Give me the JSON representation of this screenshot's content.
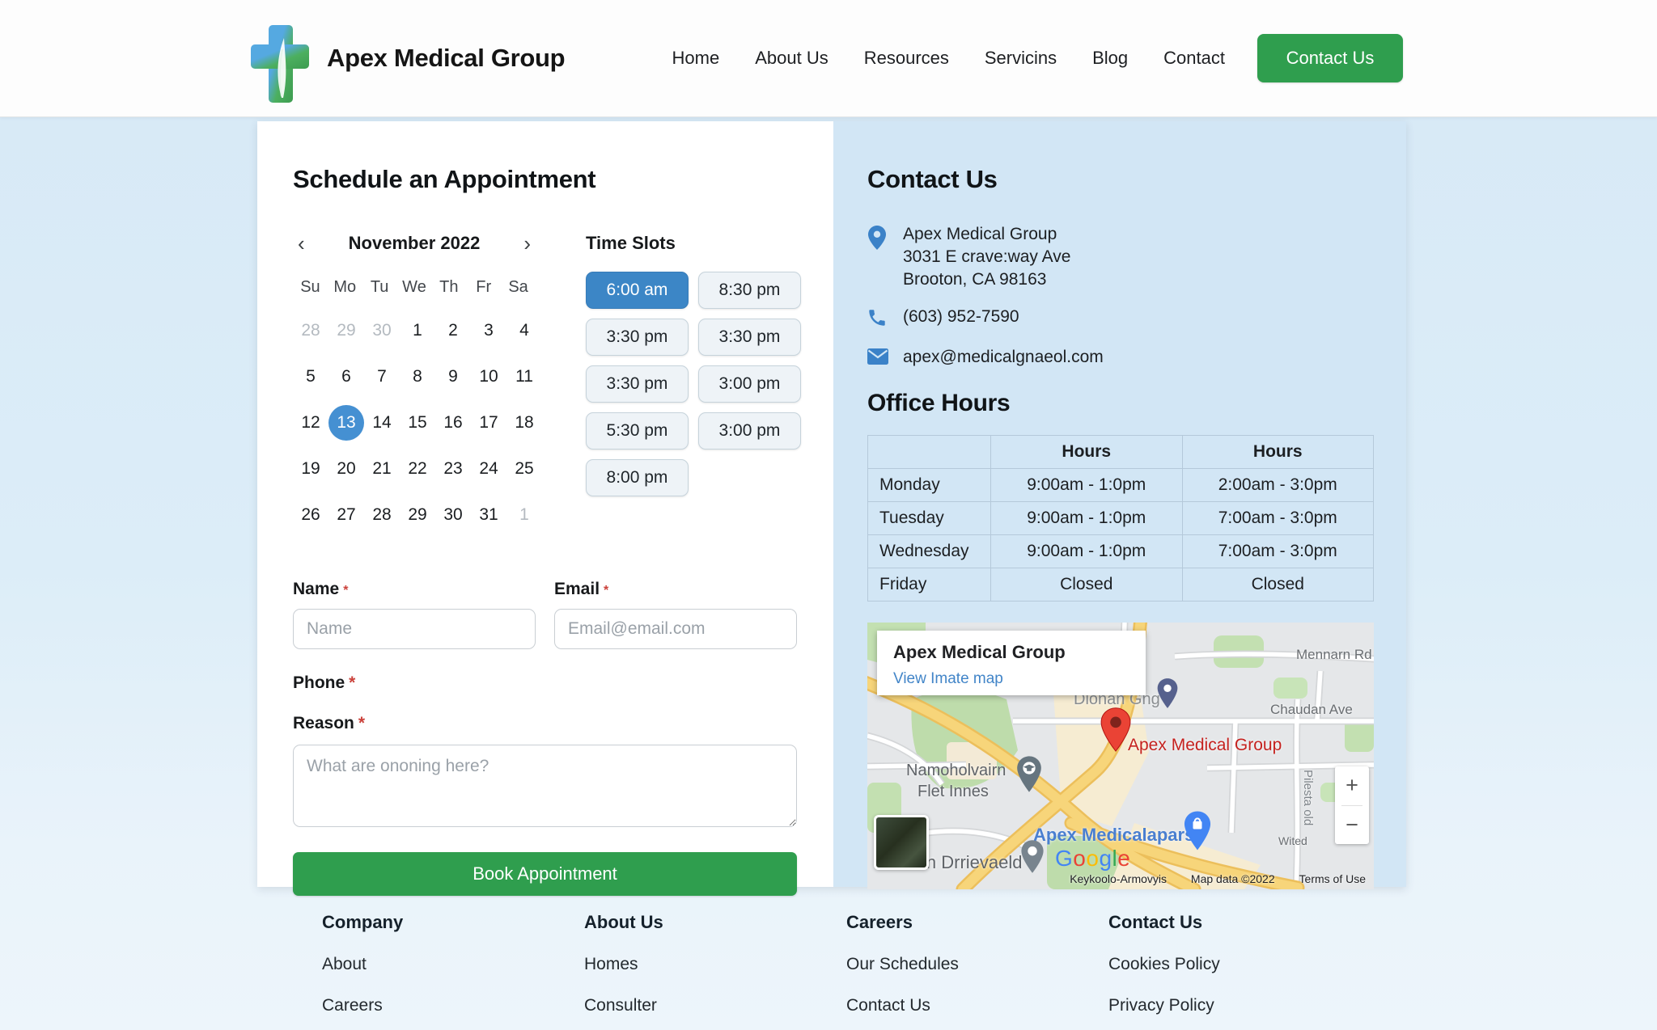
{
  "header": {
    "brand": "Apex Medical Group",
    "nav": [
      "Home",
      "About Us",
      "Resources",
      "Servicins",
      "Blog",
      "Contact"
    ],
    "cta": "Contact Us"
  },
  "scheduler": {
    "title": "Schedule an Appointment",
    "calendar": {
      "month": "November 2022",
      "prev": "‹",
      "next": "›",
      "weekdays": [
        "Su",
        "Mo",
        "Tu",
        "We",
        "Th",
        "Fr",
        "Sa"
      ],
      "days": [
        {
          "n": "28",
          "muted": true
        },
        {
          "n": "29",
          "muted": true
        },
        {
          "n": "30",
          "muted": true
        },
        {
          "n": "1"
        },
        {
          "n": "2"
        },
        {
          "n": "3"
        },
        {
          "n": "4"
        },
        {
          "n": "5"
        },
        {
          "n": "6"
        },
        {
          "n": "7"
        },
        {
          "n": "8"
        },
        {
          "n": "9"
        },
        {
          "n": "10"
        },
        {
          "n": "11"
        },
        {
          "n": "12"
        },
        {
          "n": "13",
          "selected": true
        },
        {
          "n": "14"
        },
        {
          "n": "15"
        },
        {
          "n": "16"
        },
        {
          "n": "17"
        },
        {
          "n": "18"
        },
        {
          "n": "19"
        },
        {
          "n": "20"
        },
        {
          "n": "21"
        },
        {
          "n": "22"
        },
        {
          "n": "23"
        },
        {
          "n": "24"
        },
        {
          "n": "25"
        },
        {
          "n": "26"
        },
        {
          "n": "27"
        },
        {
          "n": "28"
        },
        {
          "n": "29"
        },
        {
          "n": "30"
        },
        {
          "n": "31"
        },
        {
          "n": "1",
          "muted": true
        }
      ]
    },
    "timeslots": {
      "title": "Time Slots",
      "slots": [
        {
          "label": "6:00 am",
          "selected": true
        },
        {
          "label": "8:30 pm"
        },
        {
          "label": "3:30 pm"
        },
        {
          "label": "3:30 pm"
        },
        {
          "label": "3:30 pm"
        },
        {
          "label": "3:00 pm"
        },
        {
          "label": "5:30 pm"
        },
        {
          "label": "3:00 pm"
        },
        {
          "label": "8:00 pm"
        }
      ]
    },
    "form": {
      "name_label": "Name",
      "email_label": "Email",
      "phone_label": "Phone",
      "reason_label": "Reason",
      "required_mark": "*",
      "name_placeholder": "Name",
      "email_placeholder": "Email@email.com",
      "reason_placeholder": "What are ononing here?",
      "submit": "Book Appointment"
    }
  },
  "contact": {
    "title": "Contact Us",
    "address_lines": [
      "Apex Medical Group",
      "3031 E crave:way Ave",
      "Brooton, CA 98163"
    ],
    "phone": "(603) 952-7590",
    "email": "apex@medicalgnaeol.com"
  },
  "office_hours": {
    "title": "Office Hours",
    "headers": [
      "",
      "Hours",
      "Hours"
    ],
    "rows": [
      [
        "Monday",
        "9:00am - 1:0pm",
        "2:00am - 3:0pm"
      ],
      [
        "Tuesday",
        "9:00am - 1:0pm",
        "7:00am - 3:0pm"
      ],
      [
        "Wednesday",
        "9:00am - 1:0pm",
        "7:00am - 3:0pm"
      ],
      [
        "Friday",
        "Closed",
        "Closed"
      ]
    ]
  },
  "map": {
    "card_title": "Apex Medical Group",
    "card_link": "View Imate map",
    "marker_label": "Apex Medical Group",
    "labels": {
      "road_top": "Mennarn Rd",
      "road_mid": "Chaudan Ave",
      "hidden_place": "Dionan Gng",
      "place1_line1": "Namoholvairn",
      "place1_line2": "Flet Innes",
      "place2": "Apex Medicalapars",
      "place3": "in Drrievaeld",
      "road_vertical": "Pilesta old",
      "road_small": "Wited"
    },
    "google": "Google",
    "attribution": [
      "Keykoolo-Armovyis",
      "Map data ©2022",
      "Terms of Use"
    ],
    "zoom_in": "+",
    "zoom_out": "−"
  },
  "footer": {
    "columns": [
      {
        "heading": "Company",
        "links": [
          "About",
          "Careers"
        ]
      },
      {
        "heading": "About Us",
        "links": [
          "Homes",
          "Consulter"
        ]
      },
      {
        "heading": "Careers",
        "links": [
          "Our Schedules",
          "Contact Us"
        ]
      },
      {
        "heading": "Contact Us",
        "links": [
          "Cookies Policy",
          "Privacy Policy"
        ]
      }
    ]
  },
  "colors": {
    "accent_green": "#2f9e4e",
    "accent_blue": "#3c86c6",
    "selected_day_blue": "#4590d2",
    "panel_blue": "#d2e6f5",
    "link_blue": "#4285c8",
    "marker_red": "#ea4335",
    "icon_blue": "#3b82c8",
    "google_letters": [
      "#4285F4",
      "#EA4335",
      "#FBBC05",
      "#4285F4",
      "#34A853",
      "#EA4335"
    ]
  }
}
